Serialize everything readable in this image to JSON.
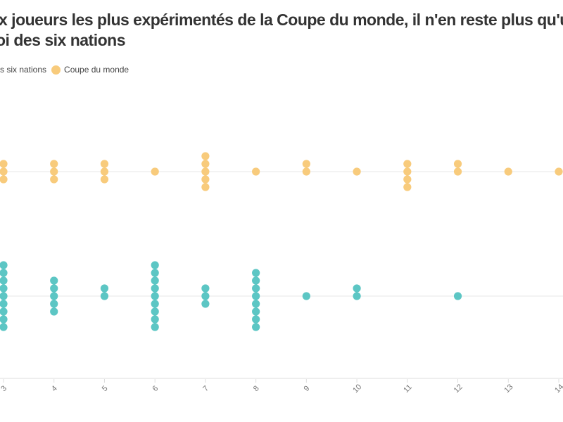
{
  "chart_data": {
    "type": "scatter",
    "subtype": "beeswarm",
    "title_lines": [
      "x joueurs les plus expérimentés de la Coupe du monde, il n'en reste plus qu'u",
      "oi des six nations"
    ],
    "legend": [
      {
        "label": "s six nations",
        "color": "#5cc6c4"
      },
      {
        "label": "Coupe du monde",
        "color": "#f8cb7c"
      }
    ],
    "x_ticks": [
      3,
      4,
      5,
      6,
      7,
      8,
      9,
      10,
      11,
      12,
      13,
      14
    ],
    "xlim": [
      3,
      14
    ],
    "grid": true,
    "series": [
      {
        "name": "Coupe du monde",
        "color": "#f8cb7c",
        "x": [
          3,
          4,
          5,
          6,
          7,
          8,
          9,
          10,
          11,
          12,
          13,
          14
        ],
        "counts": [
          3,
          3,
          3,
          1,
          5,
          1,
          2,
          1,
          4,
          2,
          1,
          1
        ]
      },
      {
        "name": "six nations",
        "color": "#5cc6c4",
        "x": [
          3,
          4,
          5,
          6,
          7,
          8,
          9,
          10,
          11,
          12,
          13,
          14
        ],
        "counts": [
          9,
          5,
          2,
          9,
          3,
          8,
          1,
          2,
          0,
          1,
          0,
          0
        ]
      }
    ]
  }
}
